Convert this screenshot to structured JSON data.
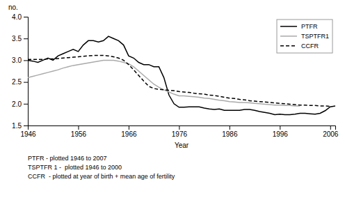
{
  "chart_data": {
    "type": "line",
    "ylabel": "no.",
    "xlabel": "Year",
    "xlim": [
      1946,
      2007
    ],
    "ylim": [
      1.5,
      4.0
    ],
    "xticks": [
      1946,
      1956,
      1966,
      1976,
      1986,
      1996,
      2006
    ],
    "yticks": [
      1.5,
      {
        "value": 2.0,
        "label": "2.0"
      },
      2.5,
      {
        "value": 3.0,
        "label": "3.0"
      },
      3.5,
      {
        "value": 4.0,
        "label": "4.0"
      }
    ],
    "grid": false,
    "legend": "upper right",
    "annotations": [
      "PTFR - plotted 1946 to 2007",
      "TSPTFR 1 -  plotted 1946 to 2000",
      "CCFR  - plotted at year of birth + mean age of fertility"
    ],
    "x": [
      1946,
      1947,
      1948,
      1949,
      1950,
      1951,
      1952,
      1953,
      1954,
      1955,
      1956,
      1957,
      1958,
      1959,
      1960,
      1961,
      1962,
      1963,
      1964,
      1965,
      1966,
      1967,
      1968,
      1969,
      1970,
      1971,
      1972,
      1973,
      1974,
      1975,
      1976,
      1977,
      1978,
      1979,
      1980,
      1981,
      1982,
      1983,
      1984,
      1985,
      1986,
      1987,
      1988,
      1989,
      1990,
      1991,
      1992,
      1993,
      1994,
      1995,
      1996,
      1997,
      1998,
      1999,
      2000,
      2001,
      2002,
      2003,
      2004,
      2005,
      2006,
      2007
    ],
    "series": [
      {
        "name": "PTFR",
        "color": "#000000",
        "line_style": "solid",
        "values": [
          3.0,
          2.98,
          2.95,
          3.0,
          3.05,
          3.0,
          3.1,
          3.15,
          3.2,
          3.25,
          3.2,
          3.35,
          3.45,
          3.45,
          3.42,
          3.45,
          3.55,
          3.5,
          3.45,
          3.35,
          3.1,
          3.05,
          2.95,
          2.9,
          2.9,
          2.85,
          2.85,
          2.6,
          2.2,
          2.0,
          1.92,
          1.92,
          1.93,
          1.93,
          1.93,
          1.9,
          1.88,
          1.87,
          1.88,
          1.85,
          1.85,
          1.85,
          1.85,
          1.87,
          1.87,
          1.85,
          1.82,
          1.8,
          1.78,
          1.75,
          1.76,
          1.75,
          1.75,
          1.76,
          1.78,
          1.78,
          1.77,
          1.76,
          1.78,
          1.84,
          1.93,
          1.95
        ]
      },
      {
        "name": "TSPTFR1",
        "color": "#aaaaaa",
        "line_style": "solid",
        "values": [
          2.6,
          2.63,
          2.66,
          2.69,
          2.72,
          2.75,
          2.78,
          2.82,
          2.85,
          2.88,
          2.9,
          2.92,
          2.94,
          2.96,
          2.98,
          3.0,
          3.0,
          3.0,
          2.98,
          2.95,
          2.92,
          2.85,
          2.75,
          2.65,
          2.55,
          2.45,
          2.38,
          2.32,
          2.27,
          2.22,
          2.18,
          2.18,
          2.17,
          2.16,
          2.15,
          2.13,
          2.12,
          2.1,
          2.08,
          2.07,
          2.05,
          2.04,
          2.03,
          2.03,
          2.02,
          2.01,
          2.0,
          1.99,
          1.98,
          1.97,
          1.97,
          1.96,
          1.96,
          1.95,
          1.95,
          null,
          null,
          null,
          null,
          null,
          null,
          null
        ]
      },
      {
        "name": "CCFR",
        "color": "#000000",
        "line_style": "dashed",
        "values": [
          3.02,
          3.02,
          3.02,
          3.02,
          3.03,
          3.03,
          3.04,
          3.05,
          3.06,
          3.07,
          3.08,
          3.09,
          3.1,
          3.11,
          3.11,
          3.11,
          3.1,
          3.08,
          3.05,
          3.0,
          2.9,
          2.78,
          2.65,
          2.52,
          2.4,
          2.35,
          2.33,
          2.32,
          2.31,
          2.3,
          2.28,
          2.27,
          2.26,
          2.24,
          2.23,
          2.22,
          2.2,
          2.19,
          2.17,
          2.15,
          2.13,
          2.12,
          2.1,
          2.09,
          2.07,
          2.06,
          2.05,
          2.04,
          2.03,
          2.02,
          2.01,
          2.0,
          1.99,
          1.98,
          1.97,
          1.97,
          1.96,
          1.96,
          1.95,
          1.95,
          1.94,
          null
        ]
      }
    ]
  }
}
